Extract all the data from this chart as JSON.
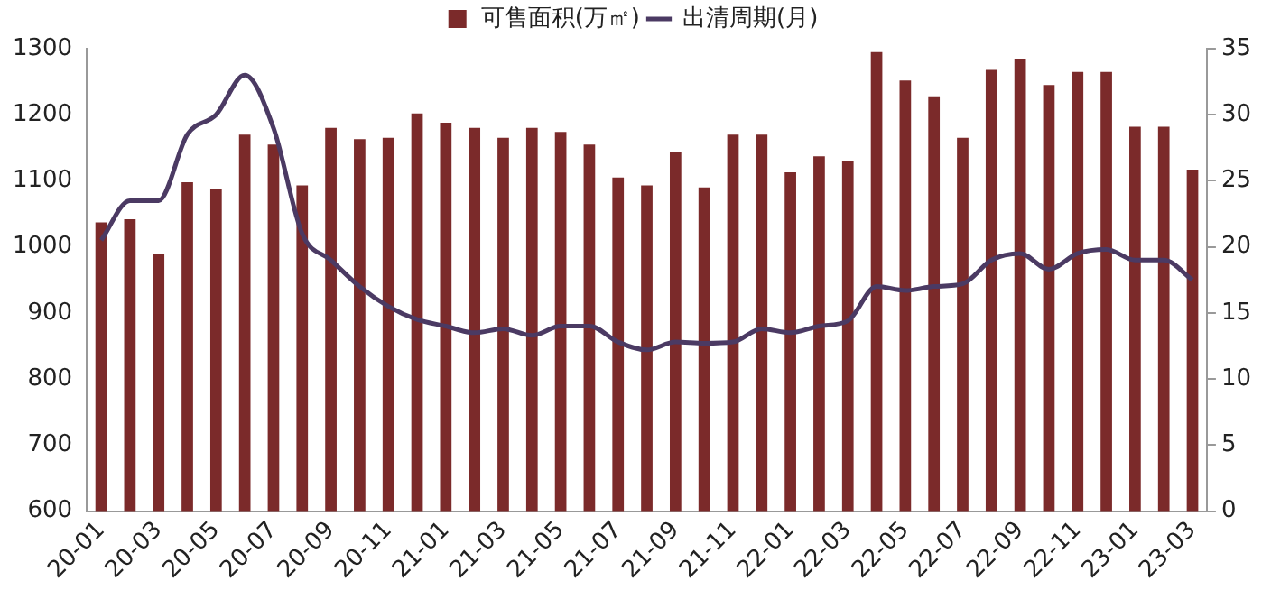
{
  "chart_data": {
    "type": "bar",
    "categories": [
      "20-01",
      null,
      "20-03",
      null,
      "20-05",
      null,
      "20-07",
      null,
      "20-09",
      null,
      "20-11",
      null,
      "21-01",
      null,
      "21-03",
      null,
      "21-05",
      null,
      "21-07",
      null,
      "21-09",
      null,
      "21-11",
      null,
      "22-01",
      null,
      "22-03",
      null,
      "22-05",
      null,
      "22-07",
      null,
      "22-09",
      null,
      "22-11",
      null,
      "23-01",
      null,
      "23-03"
    ],
    "series": [
      {
        "name": "可售面积(万㎡)",
        "color": "#7b2a2a",
        "values": [
          1037,
          1042,
          990,
          1098,
          1088,
          1170,
          1155,
          1093,
          1180,
          1163,
          1165,
          1202,
          1188,
          1180,
          1165,
          1180,
          1174,
          1155,
          1105,
          1093,
          1143,
          1090,
          1170,
          1170,
          1113,
          1137,
          1130,
          1295,
          1252,
          1228,
          1165,
          1268,
          1285,
          1245,
          1265,
          1265,
          1182,
          1182,
          1117
        ]
      },
      {
        "name": "出清周期(月)",
        "type": "line",
        "axis": "y2",
        "color": "#4b3a63",
        "values": [
          20.5,
          23.5,
          23.5,
          28.5,
          30,
          33,
          29,
          21,
          19,
          17,
          15.5,
          14.5,
          14,
          13.5,
          13.8,
          13.3,
          14,
          14,
          12.8,
          12.2,
          12.8,
          12.7,
          12.8,
          13.8,
          13.5,
          14,
          14.4,
          17,
          16.7,
          17,
          17.2,
          19,
          19.5,
          18.3,
          19.5,
          19.8,
          19,
          19,
          17.5
        ]
      }
    ],
    "ylim": [
      600,
      1300
    ],
    "yticks": [
      600,
      700,
      800,
      900,
      1000,
      1100,
      1200,
      1300
    ],
    "y2lim": [
      0,
      35
    ],
    "y2ticks": [
      0,
      5,
      10,
      15,
      20,
      25,
      30,
      35
    ],
    "grid": false,
    "legend": "top",
    "marker": "none",
    "line_style": "solid"
  }
}
